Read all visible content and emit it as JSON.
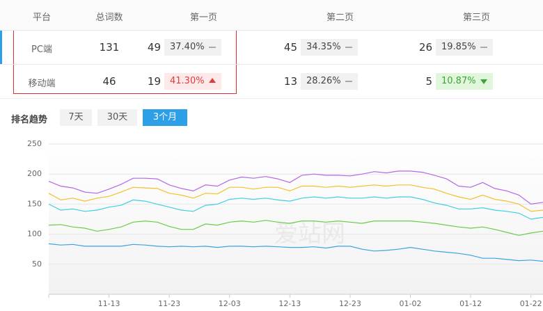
{
  "table": {
    "headers": [
      "平台",
      "总词数",
      "第一页",
      "第二页",
      "第三页"
    ],
    "rows": [
      {
        "platform": "PC端",
        "total": 131,
        "pages": [
          {
            "count": 49,
            "rate": "37.40%",
            "trend": "flat"
          },
          {
            "count": 45,
            "rate": "34.35%",
            "trend": "flat"
          },
          {
            "count": 26,
            "rate": "19.85%",
            "trend": "flat"
          }
        ]
      },
      {
        "platform": "移动端",
        "total": 46,
        "pages": [
          {
            "count": 19,
            "rate": "41.30%",
            "trend": "up"
          },
          {
            "count": 13,
            "rate": "28.26%",
            "trend": "flat"
          },
          {
            "count": 5,
            "rate": "10.87%",
            "trend": "down"
          }
        ]
      }
    ]
  },
  "tabs": {
    "label": "排名趋势",
    "options": [
      "7天",
      "30天",
      "3个月"
    ],
    "active": 2
  },
  "watermark": "爱站网",
  "chart_data": {
    "type": "line",
    "categories": [
      null,
      null,
      null,
      null,
      null,
      "11-13",
      null,
      null,
      null,
      null,
      "11-23",
      null,
      null,
      null,
      null,
      "12-03",
      null,
      null,
      null,
      null,
      "12-13",
      null,
      null,
      null,
      null,
      "12-23",
      null,
      null,
      null,
      null,
      "01-02",
      null,
      null,
      null,
      null,
      "01-12",
      null,
      null,
      null,
      null,
      "01-22",
      null
    ],
    "ylim": [
      0,
      250
    ],
    "yticks": [
      50,
      100,
      150,
      200,
      250
    ],
    "grid": true,
    "series": [
      {
        "color": "#b369e6",
        "values": [
          188,
          180,
          177,
          170,
          168,
          175,
          183,
          193,
          193,
          192,
          182,
          176,
          172,
          182,
          180,
          190,
          195,
          193,
          196,
          192,
          186,
          198,
          200,
          198,
          198,
          197,
          200,
          204,
          202,
          205,
          205,
          203,
          198,
          192,
          180,
          178,
          186,
          176,
          172,
          165,
          150,
          153
        ]
      },
      {
        "color": "#f4c02a",
        "values": [
          168,
          157,
          160,
          155,
          160,
          163,
          170,
          178,
          177,
          176,
          168,
          165,
          160,
          168,
          167,
          178,
          178,
          175,
          178,
          178,
          172,
          180,
          180,
          178,
          180,
          178,
          180,
          182,
          180,
          182,
          182,
          178,
          175,
          168,
          162,
          158,
          165,
          158,
          155,
          150,
          138,
          140
        ]
      },
      {
        "color": "#40cfe0",
        "values": [
          150,
          140,
          142,
          138,
          140,
          145,
          148,
          157,
          155,
          150,
          145,
          140,
          138,
          148,
          150,
          158,
          160,
          158,
          160,
          157,
          155,
          160,
          162,
          160,
          162,
          160,
          160,
          162,
          160,
          162,
          162,
          158,
          152,
          148,
          142,
          142,
          144,
          140,
          138,
          135,
          125,
          128
        ]
      },
      {
        "color": "#6acb4a",
        "values": [
          115,
          116,
          112,
          110,
          105,
          108,
          112,
          120,
          122,
          120,
          113,
          108,
          108,
          117,
          115,
          120,
          122,
          120,
          123,
          120,
          118,
          122,
          122,
          120,
          122,
          120,
          118,
          122,
          122,
          122,
          122,
          120,
          118,
          115,
          112,
          110,
          112,
          108,
          103,
          98,
          102,
          105
        ]
      },
      {
        "color": "#3aa3e0",
        "values": [
          84,
          82,
          83,
          80,
          80,
          80,
          80,
          83,
          82,
          80,
          79,
          80,
          79,
          80,
          78,
          80,
          80,
          79,
          80,
          79,
          78,
          78,
          79,
          77,
          80,
          80,
          75,
          72,
          73,
          75,
          78,
          75,
          72,
          70,
          68,
          65,
          60,
          60,
          58,
          56,
          57,
          55
        ]
      }
    ]
  }
}
